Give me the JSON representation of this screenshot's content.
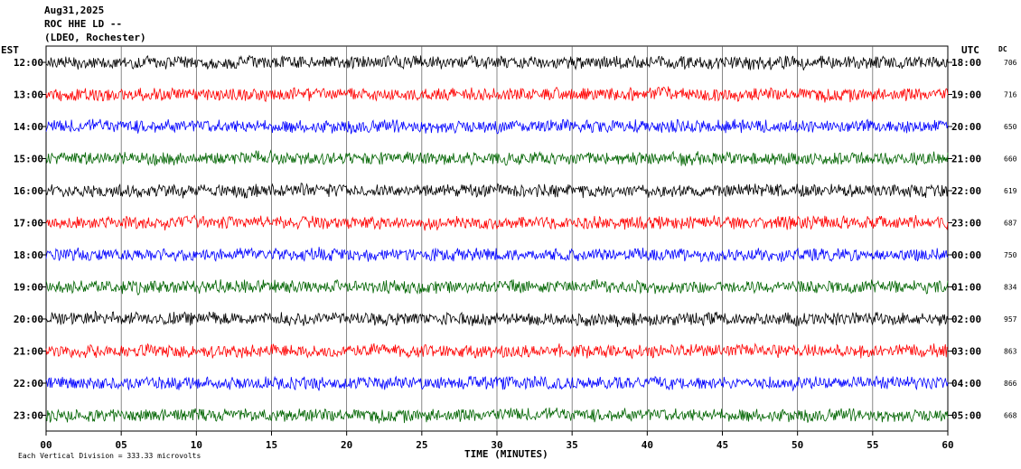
{
  "header": {
    "date": "Aug31,2025",
    "station": "ROC HHE LD --",
    "network": "(LDEO, Rochester)"
  },
  "left_tz": "EST",
  "right_tz": "UTC",
  "dc_label": "DC",
  "footer": "Each Vertical Division =  333.33 microvolts",
  "chart_data": {
    "type": "line",
    "title": "",
    "xlabel": "TIME (MINUTES)",
    "ylabel": "",
    "xlim": [
      0,
      60
    ],
    "x_ticks": [
      "00",
      "05",
      "10",
      "15",
      "20",
      "25",
      "30",
      "35",
      "40",
      "45",
      "50",
      "55",
      "60"
    ],
    "grid": "vertical lines every 5 minutes",
    "colors": [
      "#000000",
      "#ff0000",
      "#0000ff",
      "#006400"
    ],
    "rows": [
      {
        "est": "12:00",
        "utc": "18:00",
        "dc": "706",
        "color": "#000000"
      },
      {
        "est": "13:00",
        "utc": "19:00",
        "dc": "716",
        "color": "#ff0000"
      },
      {
        "est": "14:00",
        "utc": "20:00",
        "dc": "650",
        "color": "#0000ff"
      },
      {
        "est": "15:00",
        "utc": "21:00",
        "dc": "660",
        "color": "#006400"
      },
      {
        "est": "16:00",
        "utc": "22:00",
        "dc": "619",
        "color": "#000000"
      },
      {
        "est": "17:00",
        "utc": "23:00",
        "dc": "687",
        "color": "#ff0000"
      },
      {
        "est": "18:00",
        "utc": "00:00",
        "dc": "750",
        "color": "#0000ff"
      },
      {
        "est": "19:00",
        "utc": "01:00",
        "dc": "834",
        "color": "#006400"
      },
      {
        "est": "20:00",
        "utc": "02:00",
        "dc": "957",
        "color": "#000000"
      },
      {
        "est": "21:00",
        "utc": "03:00",
        "dc": "863",
        "color": "#ff0000"
      },
      {
        "est": "22:00",
        "utc": "04:00",
        "dc": "866",
        "color": "#0000ff"
      },
      {
        "est": "23:00",
        "utc": "05:00",
        "dc": "668",
        "color": "#006400"
      }
    ]
  }
}
